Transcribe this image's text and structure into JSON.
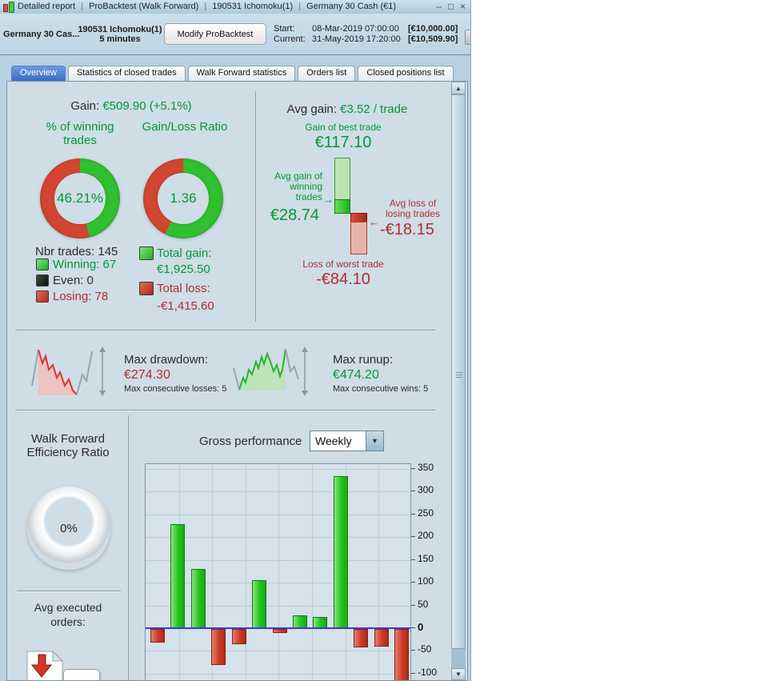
{
  "window": {
    "title_parts": [
      "Detailed report",
      "ProBacktest (Walk Forward)",
      "190531 Ichomoku(1)",
      "Germany 30 Cash (€1)"
    ],
    "separator": "|",
    "minimize": "–",
    "maximize": "□",
    "close": "×"
  },
  "toolbar": {
    "instrument": "Germany 30 Cas...",
    "system_line1": "190531 Ichomoku(1)",
    "system_line2": "5 minutes",
    "modify_button": "Modify ProBacktest",
    "start_label": "Start:",
    "start_datetime": "08-Mar-2019 07:00:00",
    "start_equity": "[€10,000.00]",
    "current_label": "Current:",
    "current_datetime": "31-May-2019 17:20:00",
    "current_equity": "[€10,509.90]"
  },
  "tabs": {
    "overview": "Overview",
    "stats": "Statistics of closed trades",
    "walk_forward": "Walk Forward statistics",
    "orders": "Orders list",
    "closed_positions": "Closed positions list"
  },
  "overview": {
    "gain_label": "Gain:",
    "gain_value": "€509.90 (+5.1%)",
    "winning_donut": {
      "title": "% of winning trades",
      "value": "46.21%",
      "green_pct": 46.21
    },
    "ratio_donut": {
      "title": "Gain/Loss Ratio",
      "value": "1.36",
      "green_pct": 57.6
    },
    "nbr_trades": "Nbr trades: 145",
    "legend": [
      {
        "label": "Winning: 67",
        "swatch": "#33cc33"
      },
      {
        "label": "Even: 0",
        "swatch": "#1c261c"
      },
      {
        "label": "Losing: 78",
        "swatch": "#cc3322"
      }
    ],
    "total_gain_label": "Total gain:",
    "total_gain_value": "€1,925.50",
    "total_loss_label": "Total loss:",
    "total_loss_value": "-€1,415.60",
    "avg_gain_label": "Avg gain:",
    "avg_gain_value": "€3.52 / trade",
    "best_trade_label": "Gain of best trade",
    "best_trade_value": "€117.10",
    "avg_win_label": "Avg gain of winning trades",
    "avg_win_arrow": "→",
    "avg_win_value": "€28.74",
    "avg_loss_label": "Avg loss of losing trades",
    "avg_loss_arrow": "←",
    "avg_loss_value": "-€18.15",
    "worst_trade_label": "Loss of worst trade",
    "worst_trade_value": "-€84.10"
  },
  "risk": {
    "drawdown_label": "Max drawdown:",
    "drawdown_value": "€274.30",
    "drawdown_sub": "Max consecutive losses: 5",
    "runup_label": "Max runup:",
    "runup_value": "€474.20",
    "runup_sub": "Max consecutive wins: 5"
  },
  "bottom": {
    "wfer_title": "Walk Forward Efficiency Ratio",
    "wfer_value": "0%",
    "avg_orders_label": "Avg executed orders:",
    "gross_perf_label": "Gross performance",
    "period_value": "Weekly"
  },
  "colors": {
    "green_text": "#009933",
    "red_text": "#b32d2d",
    "donut_green": "#2fbf2f",
    "donut_red": "#d24531",
    "bar_green": "#22c41e",
    "bar_red": "#cc3a28",
    "zero_line": "#3a3ad6",
    "selected_tab_blue": "#4a82d2"
  },
  "chart_data": {
    "type": "bar",
    "title": "Gross performance",
    "period": "Weekly",
    "values": [
      -30,
      228,
      130,
      -80,
      -33,
      105,
      -8,
      28,
      25,
      335,
      -40,
      -38,
      -120
    ],
    "ylim": [
      -120,
      360
    ],
    "yticks": [
      350,
      300,
      250,
      200,
      150,
      100,
      50,
      0,
      -50,
      -100
    ],
    "grid": true,
    "positive_color": "#22c41e",
    "negative_color": "#cc3a28",
    "legend_position": "none"
  }
}
